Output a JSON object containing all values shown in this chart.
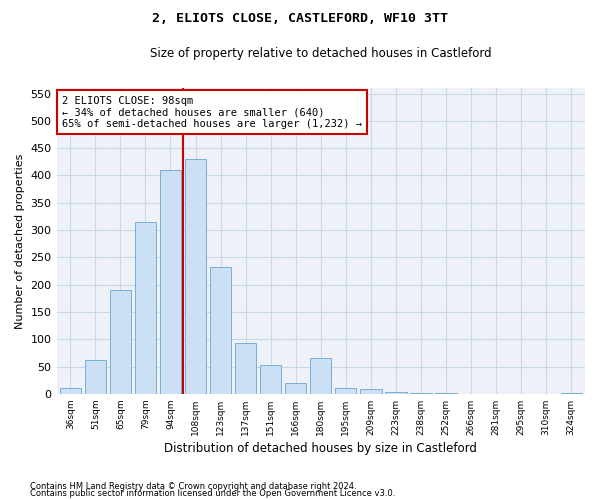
{
  "title": "2, ELIOTS CLOSE, CASTLEFORD, WF10 3TT",
  "subtitle": "Size of property relative to detached houses in Castleford",
  "xlabel": "Distribution of detached houses by size in Castleford",
  "ylabel": "Number of detached properties",
  "categories": [
    "36sqm",
    "51sqm",
    "65sqm",
    "79sqm",
    "94sqm",
    "108sqm",
    "123sqm",
    "137sqm",
    "151sqm",
    "166sqm",
    "180sqm",
    "195sqm",
    "209sqm",
    "223sqm",
    "238sqm",
    "252sqm",
    "266sqm",
    "281sqm",
    "295sqm",
    "310sqm",
    "324sqm"
  ],
  "values": [
    10,
    62,
    190,
    315,
    410,
    430,
    232,
    93,
    52,
    20,
    65,
    10,
    8,
    4,
    1,
    1,
    0,
    0,
    0,
    0,
    1
  ],
  "bar_color": "#cce0f5",
  "bar_edge_color": "#7aadd4",
  "annotation_text": "2 ELIOTS CLOSE: 98sqm\n← 34% of detached houses are smaller (640)\n65% of semi-detached houses are larger (1,232) →",
  "annotation_box_color": "#ffffff",
  "annotation_box_edge": "#cc0000",
  "vline_color": "#cc0000",
  "grid_color": "#c8d8e8",
  "background_color": "#eef2f8",
  "footer_line1": "Contains HM Land Registry data © Crown copyright and database right 2024.",
  "footer_line2": "Contains public sector information licensed under the Open Government Licence v3.0.",
  "ylim": [
    0,
    560
  ],
  "yticks": [
    0,
    50,
    100,
    150,
    200,
    250,
    300,
    350,
    400,
    450,
    500,
    550
  ]
}
